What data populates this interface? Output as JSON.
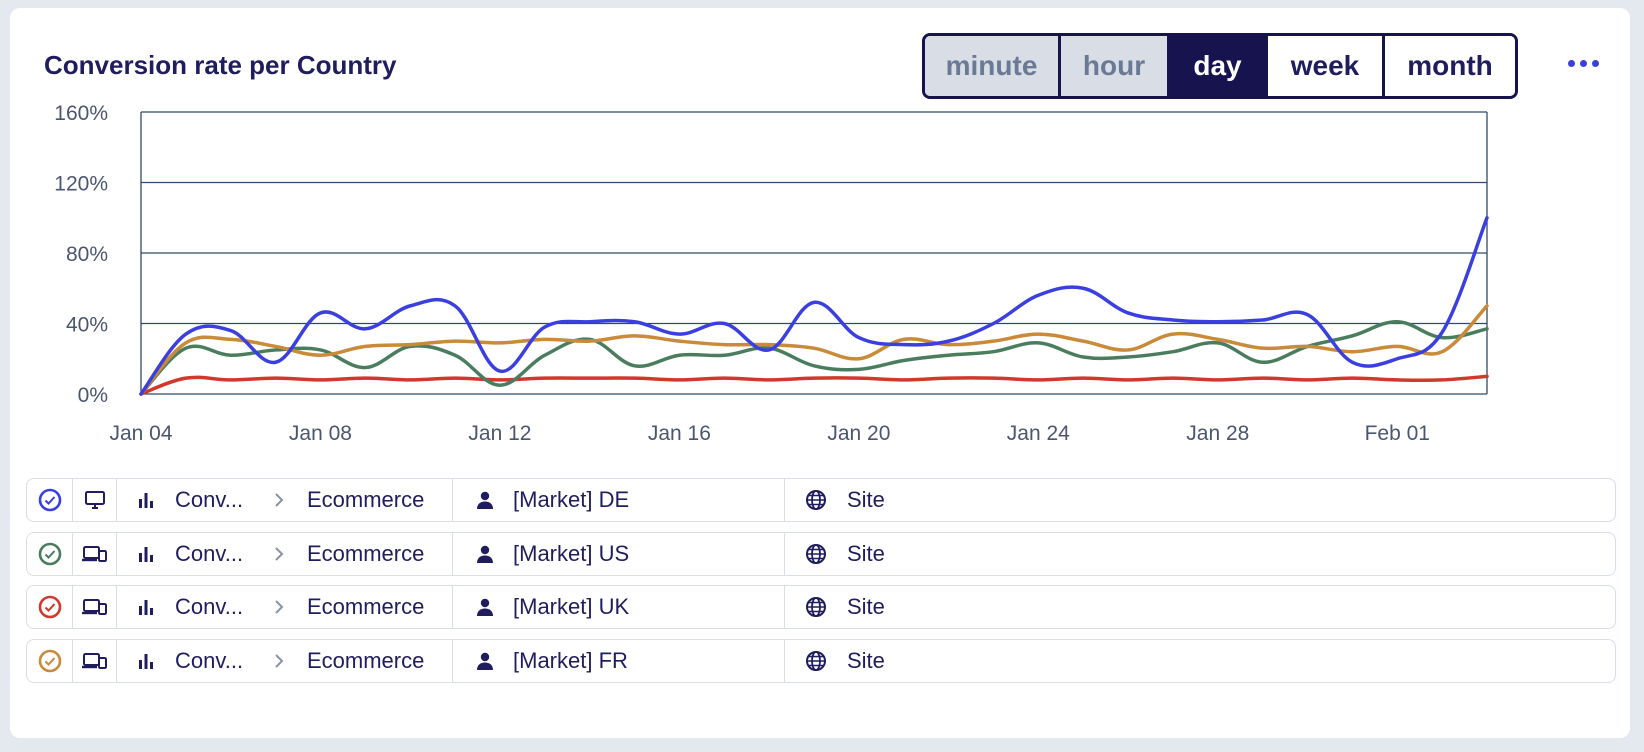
{
  "widget": {
    "title": "Conversion rate per Country",
    "granularity": [
      {
        "label": "minute",
        "state": "disabled"
      },
      {
        "label": "hour",
        "state": "disabled"
      },
      {
        "label": "day",
        "state": "active"
      },
      {
        "label": "week",
        "state": "normal"
      },
      {
        "label": "month",
        "state": "normal"
      }
    ],
    "more_icon": "ellipsis-icon"
  },
  "chart_data": {
    "type": "line",
    "title": "Conversion rate per Country",
    "xlabel": "",
    "ylabel": "",
    "ylim": [
      0,
      160
    ],
    "y_ticks": [
      "0%",
      "40%",
      "80%",
      "120%",
      "160%"
    ],
    "x_ticks": [
      "Jan 04",
      "Jan 08",
      "Jan 12",
      "Jan 16",
      "Jan 20",
      "Jan 24",
      "Jan 28",
      "Feb 01"
    ],
    "grid": true,
    "x": [
      "Jan 04",
      "Jan 05",
      "Jan 06",
      "Jan 07",
      "Jan 08",
      "Jan 09",
      "Jan 10",
      "Jan 11",
      "Jan 12",
      "Jan 13",
      "Jan 14",
      "Jan 15",
      "Jan 16",
      "Jan 17",
      "Jan 18",
      "Jan 19",
      "Jan 20",
      "Jan 21",
      "Jan 22",
      "Jan 23",
      "Jan 24",
      "Jan 25",
      "Jan 26",
      "Jan 27",
      "Jan 28",
      "Jan 29",
      "Jan 30",
      "Jan 31",
      "Feb 01",
      "Feb 02",
      "Feb 03"
    ],
    "series": [
      {
        "color": "#3b3fe0",
        "values": [
          0,
          34,
          36,
          18,
          46,
          37,
          50,
          50,
          13,
          38,
          41,
          41,
          34,
          40,
          25,
          52,
          32,
          28,
          30,
          40,
          56,
          60,
          46,
          42,
          41,
          42,
          45,
          18,
          20,
          35,
          100
        ]
      },
      {
        "color": "#4a7d5e",
        "values": [
          0,
          26,
          22,
          25,
          25,
          15,
          27,
          22,
          5,
          22,
          31,
          16,
          22,
          22,
          26,
          16,
          14,
          19,
          22,
          24,
          29,
          21,
          21,
          24,
          29,
          18,
          27,
          33,
          41,
          32,
          37
        ]
      },
      {
        "color": "#d0392b",
        "values": [
          0,
          9,
          8,
          9,
          8,
          9,
          8,
          9,
          8,
          9,
          9,
          9,
          8,
          9,
          8,
          9,
          9,
          8,
          9,
          9,
          8,
          9,
          8,
          9,
          8,
          9,
          8,
          9,
          8,
          8,
          10
        ]
      },
      {
        "color": "#c98a3a",
        "values": [
          0,
          29,
          31,
          27,
          22,
          27,
          28,
          30,
          29,
          31,
          30,
          33,
          30,
          28,
          28,
          26,
          20,
          31,
          28,
          30,
          34,
          30,
          25,
          34,
          31,
          26,
          27,
          24,
          27,
          24,
          50
        ]
      }
    ]
  },
  "legend": [
    {
      "status_color": "#3b3fe0",
      "device_icon": "monitor-icon",
      "metric": "Conv...",
      "category": "Ecommerce",
      "segment": "[Market] DE",
      "scope": "Site"
    },
    {
      "status_color": "#4a7d5e",
      "device_icon": "devices-icon",
      "metric": "Conv...",
      "category": "Ecommerce",
      "segment": "[Market] US",
      "scope": "Site"
    },
    {
      "status_color": "#d0392b",
      "device_icon": "devices-icon",
      "metric": "Conv...",
      "category": "Ecommerce",
      "segment": "[Market] UK",
      "scope": "Site"
    },
    {
      "status_color": "#c98a3a",
      "device_icon": "devices-icon",
      "metric": "Conv...",
      "category": "Ecommerce",
      "segment": "[Market] FR",
      "scope": "Site"
    }
  ]
}
